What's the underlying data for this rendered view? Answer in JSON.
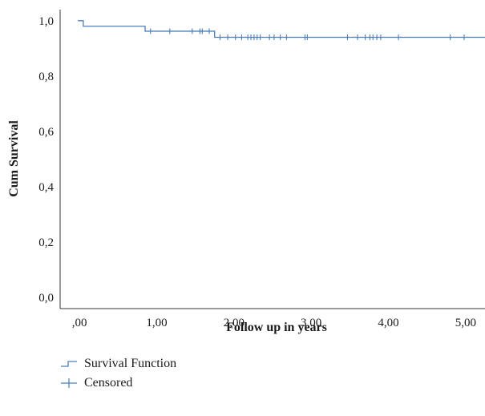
{
  "chart_data": {
    "type": "line",
    "subtype": "kaplan-meier",
    "title": "",
    "xlabel": "Follow up in years",
    "ylabel": "Cum Survival",
    "xlim": [
      -0.25,
      5.25
    ],
    "ylim": [
      -0.04,
      1.04
    ],
    "x_ticks": [
      0,
      1,
      2,
      3,
      4,
      5
    ],
    "x_tick_labels": [
      ",00",
      "1,00",
      "2,00",
      "3,00",
      "4,00",
      "5,00"
    ],
    "y_ticks": [
      0,
      0.2,
      0.4,
      0.6,
      0.8,
      1.0
    ],
    "y_tick_labels": [
      "0,0",
      "0,2",
      "0,4",
      "0,6",
      "0,8",
      "1,0"
    ],
    "grid": false,
    "legend_position": "bottom-left",
    "series_color": "#4a7ebb",
    "series": [
      {
        "name": "Survival Function",
        "step_x": [
          -0.02,
          0.05,
          0.85,
          1.75,
          5.25
        ],
        "step_y": [
          1.0,
          0.98,
          0.962,
          0.94,
          0.94
        ]
      },
      {
        "name": "Censored",
        "points_x": [
          0.92,
          1.17,
          1.46,
          1.56,
          1.59,
          1.68,
          1.82,
          1.92,
          2.02,
          2.1,
          2.18,
          2.22,
          2.26,
          2.3,
          2.34,
          2.46,
          2.52,
          2.6,
          2.68,
          2.92,
          2.95,
          3.47,
          3.6,
          3.7,
          3.76,
          3.8,
          3.85,
          3.9,
          4.13,
          4.8,
          4.98
        ],
        "points_y": [
          0.962,
          0.962,
          0.962,
          0.962,
          0.962,
          0.962,
          0.94,
          0.94,
          0.94,
          0.94,
          0.94,
          0.94,
          0.94,
          0.94,
          0.94,
          0.94,
          0.94,
          0.94,
          0.94,
          0.94,
          0.94,
          0.94,
          0.94,
          0.94,
          0.94,
          0.94,
          0.94,
          0.94,
          0.94,
          0.94,
          0.94
        ]
      }
    ]
  },
  "legend": {
    "survival_label": "Survival Function",
    "censored_label": "Censored"
  }
}
